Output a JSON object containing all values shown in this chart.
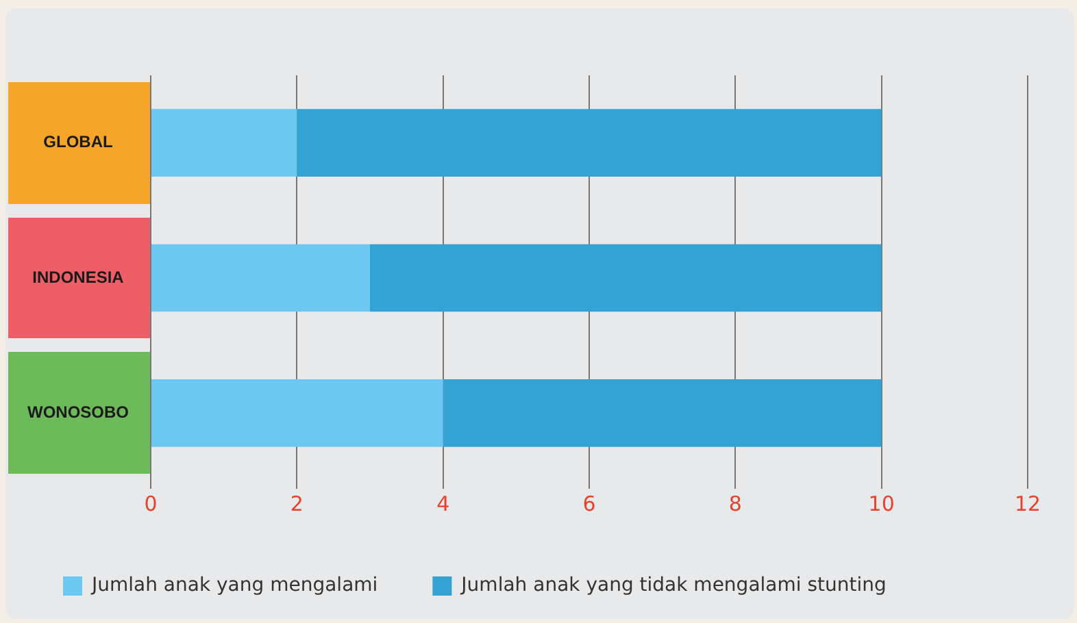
{
  "chart_data": {
    "type": "bar",
    "orientation": "horizontal",
    "stacked": true,
    "categories": [
      "GLOBAL",
      "INDONESIA",
      "WONOSOBO"
    ],
    "series": [
      {
        "name": "Jumlah anak yang mengalami",
        "color": "#6cc8f0",
        "values": [
          2,
          3,
          4
        ]
      },
      {
        "name": "Jumlah anak yang tidak mengalami stunting",
        "color": "#35a2d4",
        "values": [
          8,
          7,
          6
        ]
      }
    ],
    "xlim": [
      0,
      12
    ],
    "xticks": [
      0,
      2,
      4,
      6,
      8,
      10,
      12
    ],
    "grid": "x",
    "legend": "bottom left"
  }
}
